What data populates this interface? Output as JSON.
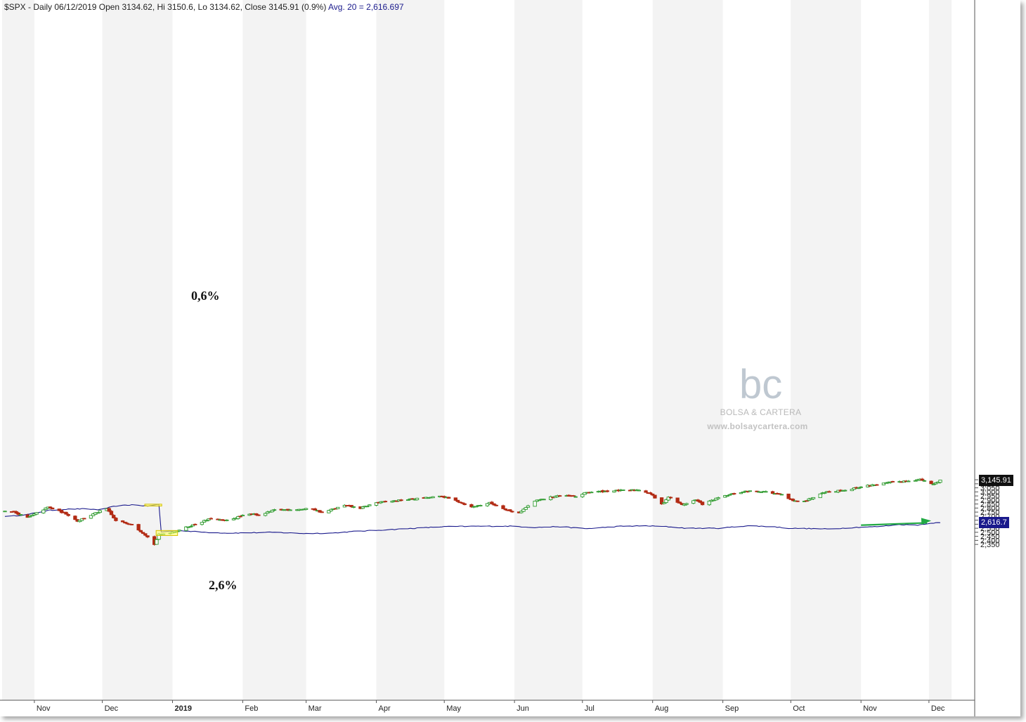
{
  "header": {
    "main": "$SPX - Daily 06/12/2019 Open 3134.62, Hi 3150.6, Lo 3134.62, Close 3145.91 (0.9%)",
    "avg": "Avg. 20 = 2,616.697"
  },
  "annotations": {
    "top_pct": "0,6%",
    "bottom_pct": "2,6%"
  },
  "watermark": {
    "logo": "bc",
    "name": "BOLSA & CARTERA",
    "url": "www.bolsaycartera.com"
  },
  "price_tags": {
    "close": "3,145.91",
    "avg": "2,616.7"
  },
  "colors": {
    "up": "#2e9a2e",
    "down": "#b22b14",
    "avg_line": "#1a1a8c",
    "highlight": "#ffff66",
    "arrow": "#22aa44",
    "band": "#f3f3f3"
  },
  "chart_data": {
    "type": "candlestick",
    "symbol": "$SPX",
    "y_ticks": [
      2350,
      2400,
      2450,
      2500,
      2550,
      2600,
      2650,
      2700,
      2750,
      2800,
      2850,
      2900,
      2950,
      3000,
      3050,
      3100,
      3150
    ],
    "y_tick_labels": [
      "2,350",
      "2,400",
      "2,450",
      "2,500",
      "2,550",
      "2,600",
      "2,650",
      "2,700",
      "2,750",
      "2,800",
      "2,850",
      "2,900",
      "2,950",
      "3,000",
      "3,050",
      "3,100",
      "3,150"
    ],
    "x_months": [
      "Nov",
      "Dec",
      "2019",
      "Feb",
      "Mar",
      "Apr",
      "May",
      "Jun",
      "Jul",
      "Aug",
      "Sep",
      "Oct",
      "Nov",
      "Dec"
    ],
    "close_anchors": [
      [
        "2018-10-22",
        2760
      ],
      [
        "2018-10-29",
        2680
      ],
      [
        "2018-11-07",
        2810
      ],
      [
        "2018-11-15",
        2730
      ],
      [
        "2018-11-20",
        2640
      ],
      [
        "2018-11-30",
        2760
      ],
      [
        "2018-12-03",
        2790
      ],
      [
        "2018-12-07",
        2640
      ],
      [
        "2018-12-14",
        2600
      ],
      [
        "2018-12-20",
        2470
      ],
      [
        "2018-12-24",
        2351
      ],
      [
        "2018-12-26",
        2470
      ],
      [
        "2019-01-02",
        2510
      ],
      [
        "2019-01-10",
        2590
      ],
      [
        "2019-01-18",
        2670
      ],
      [
        "2019-01-24",
        2640
      ],
      [
        "2019-02-01",
        2705
      ],
      [
        "2019-02-06",
        2731
      ],
      [
        "2019-02-08",
        2707
      ],
      [
        "2019-02-15",
        2775
      ],
      [
        "2019-03-04",
        2790
      ],
      [
        "2019-03-08",
        2743
      ],
      [
        "2019-03-18",
        2832
      ],
      [
        "2019-03-25",
        2798
      ],
      [
        "2019-04-01",
        2867
      ],
      [
        "2019-04-15",
        2905
      ],
      [
        "2019-04-30",
        2945
      ],
      [
        "2019-05-07",
        2884
      ],
      [
        "2019-05-13",
        2811
      ],
      [
        "2019-05-21",
        2864
      ],
      [
        "2019-05-31",
        2752
      ],
      [
        "2019-06-03",
        2744
      ],
      [
        "2019-06-10",
        2886
      ],
      [
        "2019-06-20",
        2954
      ],
      [
        "2019-06-28",
        2941
      ],
      [
        "2019-07-03",
        2995
      ],
      [
        "2019-07-15",
        3014
      ],
      [
        "2019-07-26",
        3025
      ],
      [
        "2019-07-31",
        2980
      ],
      [
        "2019-08-05",
        2844
      ],
      [
        "2019-08-08",
        2938
      ],
      [
        "2019-08-14",
        2840
      ],
      [
        "2019-08-20",
        2900
      ],
      [
        "2019-08-23",
        2847
      ],
      [
        "2019-08-30",
        2926
      ],
      [
        "2019-09-06",
        2979
      ],
      [
        "2019-09-12",
        3009
      ],
      [
        "2019-09-19",
        3006
      ],
      [
        "2019-09-27",
        2962
      ],
      [
        "2019-10-02",
        2887
      ],
      [
        "2019-10-08",
        2893
      ],
      [
        "2019-10-15",
        2996
      ],
      [
        "2019-10-25",
        3022
      ],
      [
        "2019-11-04",
        3078
      ],
      [
        "2019-11-15",
        3120
      ],
      [
        "2019-11-27",
        3153
      ],
      [
        "2019-12-03",
        3093
      ],
      [
        "2019-12-06",
        3146
      ]
    ],
    "avg_anchors": [
      [
        "2018-10-22",
        2700
      ],
      [
        "2018-10-29",
        2720
      ],
      [
        "2018-11-07",
        2770
      ],
      [
        "2018-11-15",
        2785
      ],
      [
        "2018-11-22",
        2790
      ],
      [
        "2018-11-30",
        2780
      ],
      [
        "2018-12-07",
        2825
      ],
      [
        "2018-12-14",
        2840
      ],
      [
        "2018-12-21",
        2825
      ],
      [
        "2018-12-26",
        2845
      ],
      [
        "2018-12-27",
        2505
      ],
      [
        "2019-01-04",
        2522
      ],
      [
        "2019-01-15",
        2500
      ],
      [
        "2019-01-25",
        2490
      ],
      [
        "2019-02-06",
        2495
      ],
      [
        "2019-02-14",
        2500
      ],
      [
        "2019-02-28",
        2485
      ],
      [
        "2019-03-12",
        2490
      ],
      [
        "2019-03-22",
        2510
      ],
      [
        "2019-04-05",
        2530
      ],
      [
        "2019-04-18",
        2550
      ],
      [
        "2019-05-01",
        2570
      ],
      [
        "2019-05-15",
        2575
      ],
      [
        "2019-05-31",
        2575
      ],
      [
        "2019-06-10",
        2560
      ],
      [
        "2019-06-20",
        2570
      ],
      [
        "2019-07-03",
        2545
      ],
      [
        "2019-07-18",
        2575
      ],
      [
        "2019-07-29",
        2580
      ],
      [
        "2019-08-07",
        2570
      ],
      [
        "2019-08-16",
        2550
      ],
      [
        "2019-08-30",
        2550
      ],
      [
        "2019-09-12",
        2580
      ],
      [
        "2019-09-23",
        2570
      ],
      [
        "2019-09-30",
        2550
      ],
      [
        "2019-10-10",
        2545
      ],
      [
        "2019-10-18",
        2540
      ],
      [
        "2019-10-29",
        2560
      ],
      [
        "2019-11-08",
        2570
      ],
      [
        "2019-11-18",
        2595
      ],
      [
        "2019-11-26",
        2590
      ],
      [
        "2019-12-02",
        2615
      ],
      [
        "2019-12-06",
        2617
      ]
    ],
    "highlights": [
      {
        "date_from": "2018-12-21",
        "date_to": "2018-12-26",
        "y_from": 2825,
        "y_to": 2848
      },
      {
        "date_from": "2018-12-26",
        "date_to": "2019-01-02",
        "y_from": 2460,
        "y_to": 2522
      }
    ],
    "trend_arrow": {
      "from": [
        "2019-11-01",
        2588
      ],
      "to": [
        "2019-12-02",
        2643
      ]
    },
    "last_close": 3145.91,
    "last_avg": 2616.697,
    "grid": false
  }
}
